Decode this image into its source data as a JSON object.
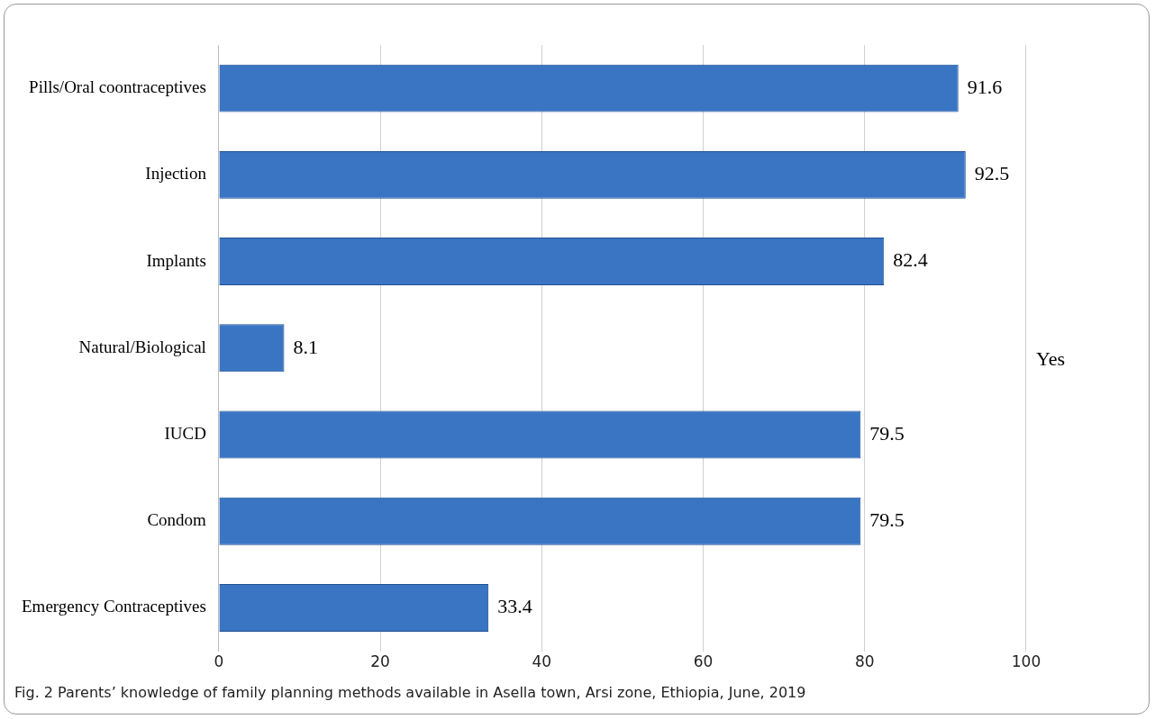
{
  "chart_data": {
    "type": "bar",
    "orientation": "horizontal",
    "categories": [
      "Pills/Oral coontraceptives",
      "Injection",
      "Implants",
      "Natural/Biological",
      "IUCD",
      "Condom",
      "Emergency Contraceptives"
    ],
    "series": [
      {
        "name": "Yes",
        "color": "#3a75c4",
        "values": [
          91.6,
          92.5,
          82.4,
          8.1,
          79.5,
          79.5,
          33.4
        ]
      }
    ],
    "xlim": [
      0,
      100
    ],
    "xticks": [
      0,
      20,
      40,
      60,
      80,
      100
    ],
    "grid": "x",
    "legend": "right",
    "data_labels": true,
    "annotations": [
      "Fig. 2  Parents’ knowledge of family planning methods available in Asella town, Arsi zone, Ethiopia, June, 2019"
    ]
  }
}
